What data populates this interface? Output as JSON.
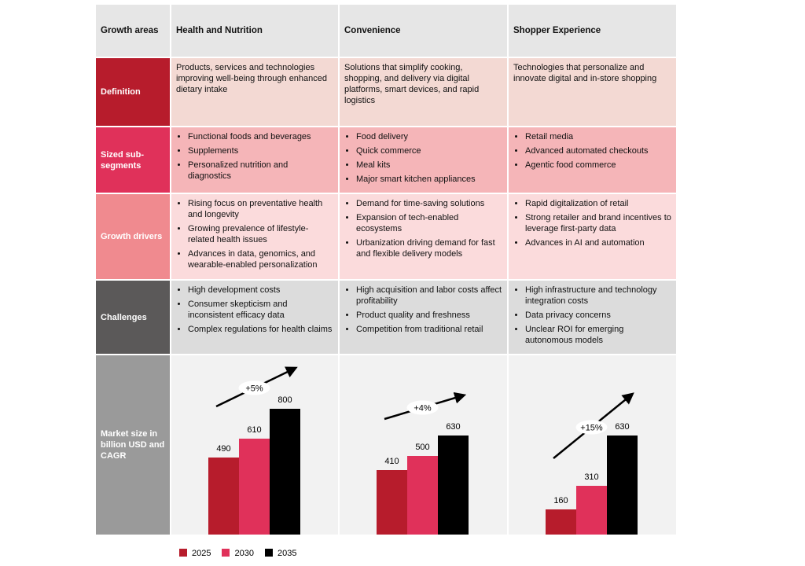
{
  "header": {
    "corner": "Growth areas",
    "columns": [
      "Health and Nutrition",
      "Convenience",
      "Shopper Experience"
    ]
  },
  "rows": [
    {
      "label": "Definition",
      "color": "#b71c2c",
      "cell_color": "#f3d9d3",
      "cells": [
        "Products, services and technologies improving well-being through enhanced dietary intake",
        "Solutions that simplify cooking, shopping, and delivery via digital platforms, smart devices, and rapid logistics",
        "Technologies that personalize and innovate digital and in-store shopping"
      ]
    },
    {
      "label": "Sized sub-segments",
      "color": "#e0315a",
      "cell_color": "#f5b5b8",
      "cells": [
        [
          "Functional foods and beverages",
          "Supplements",
          "Personalized nutrition and diagnostics"
        ],
        [
          "Food delivery",
          "Quick commerce",
          "Meal kits",
          "Major smart kitchen appliances"
        ],
        [
          "Retail media",
          "Advanced automated checkouts",
          "Agentic food commerce"
        ]
      ]
    },
    {
      "label": "Growth drivers",
      "color": "#f08a8f",
      "cell_color": "#fbdbdc",
      "cells": [
        [
          "Rising focus on preventative health and longevity",
          "Growing prevalence of lifestyle-related health issues",
          "Advances in data, genomics, and wearable-enabled personalization"
        ],
        [
          "Demand for time-saving solutions",
          "Expansion of tech-enabled ecosystems",
          "Urbanization driving demand for fast and flexible delivery models"
        ],
        [
          "Rapid digitalization of retail",
          "Strong retailer and brand incentives to leverage first-party data",
          "Advances in AI and automation"
        ]
      ]
    },
    {
      "label": "Challenges",
      "color": "#5b5959",
      "cell_color": "#dcdcdc",
      "cells": [
        [
          "High development costs",
          "Consumer skepticism and inconsistent efficacy data",
          "Complex regulations for health claims"
        ],
        [
          "High acquisition and labor costs affect profitability",
          "Product quality and freshness",
          "Competition from traditional retail"
        ],
        [
          "High infrastructure and technology integration costs",
          "Data privacy concerns",
          "Unclear ROI for emerging autonomous models"
        ]
      ]
    }
  ],
  "market": {
    "label": "Market size in billion USD and CAGR",
    "color": "#9a9a9a",
    "cell_color": "#f2f2f2",
    "charts": [
      {
        "values": [
          490,
          610,
          800
        ],
        "cagr": "+5%"
      },
      {
        "values": [
          410,
          500,
          630
        ],
        "cagr": "+4%"
      },
      {
        "values": [
          160,
          310,
          630
        ],
        "cagr": "+15%"
      }
    ]
  },
  "legend": [
    {
      "label": "2025",
      "color": "#b71c2c"
    },
    {
      "label": "2030",
      "color": "#e0315a"
    },
    {
      "label": "2035",
      "color": "#000000"
    }
  ]
}
